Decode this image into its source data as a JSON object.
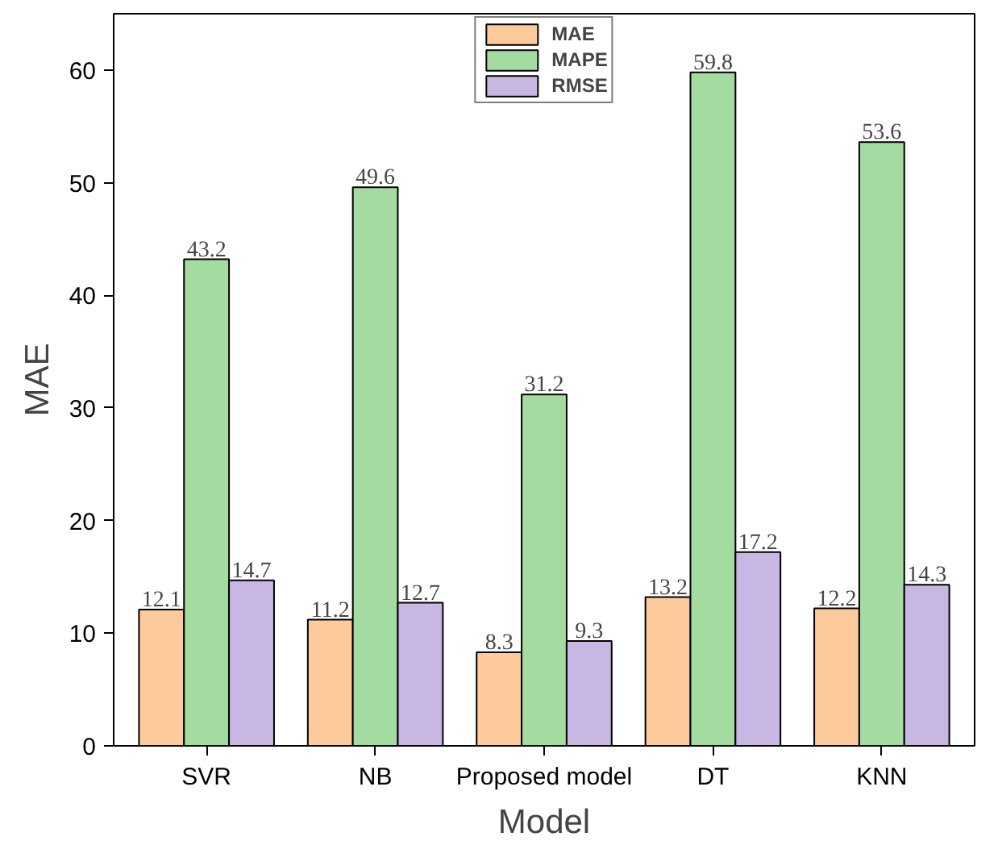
{
  "chart_data": {
    "type": "bar",
    "xlabel": "Model",
    "ylabel": "MAE",
    "categories": [
      "SVR",
      "NB",
      "Proposed model",
      "DT",
      "KNN"
    ],
    "series": [
      {
        "name": "MAE",
        "color": "#fdca9b",
        "values": [
          12.1,
          11.2,
          8.3,
          13.2,
          12.2
        ]
      },
      {
        "name": "MAPE",
        "color": "#a4dba0",
        "values": [
          43.2,
          49.6,
          31.2,
          59.8,
          53.6
        ]
      },
      {
        "name": "RMSE",
        "color": "#c8b7e2",
        "values": [
          14.7,
          12.7,
          9.3,
          17.2,
          14.3
        ]
      }
    ],
    "ylim": [
      0,
      65
    ],
    "yticks": [
      0,
      10,
      20,
      30,
      40,
      50,
      60
    ],
    "data_labels": true,
    "grid": false,
    "legend": "top"
  }
}
